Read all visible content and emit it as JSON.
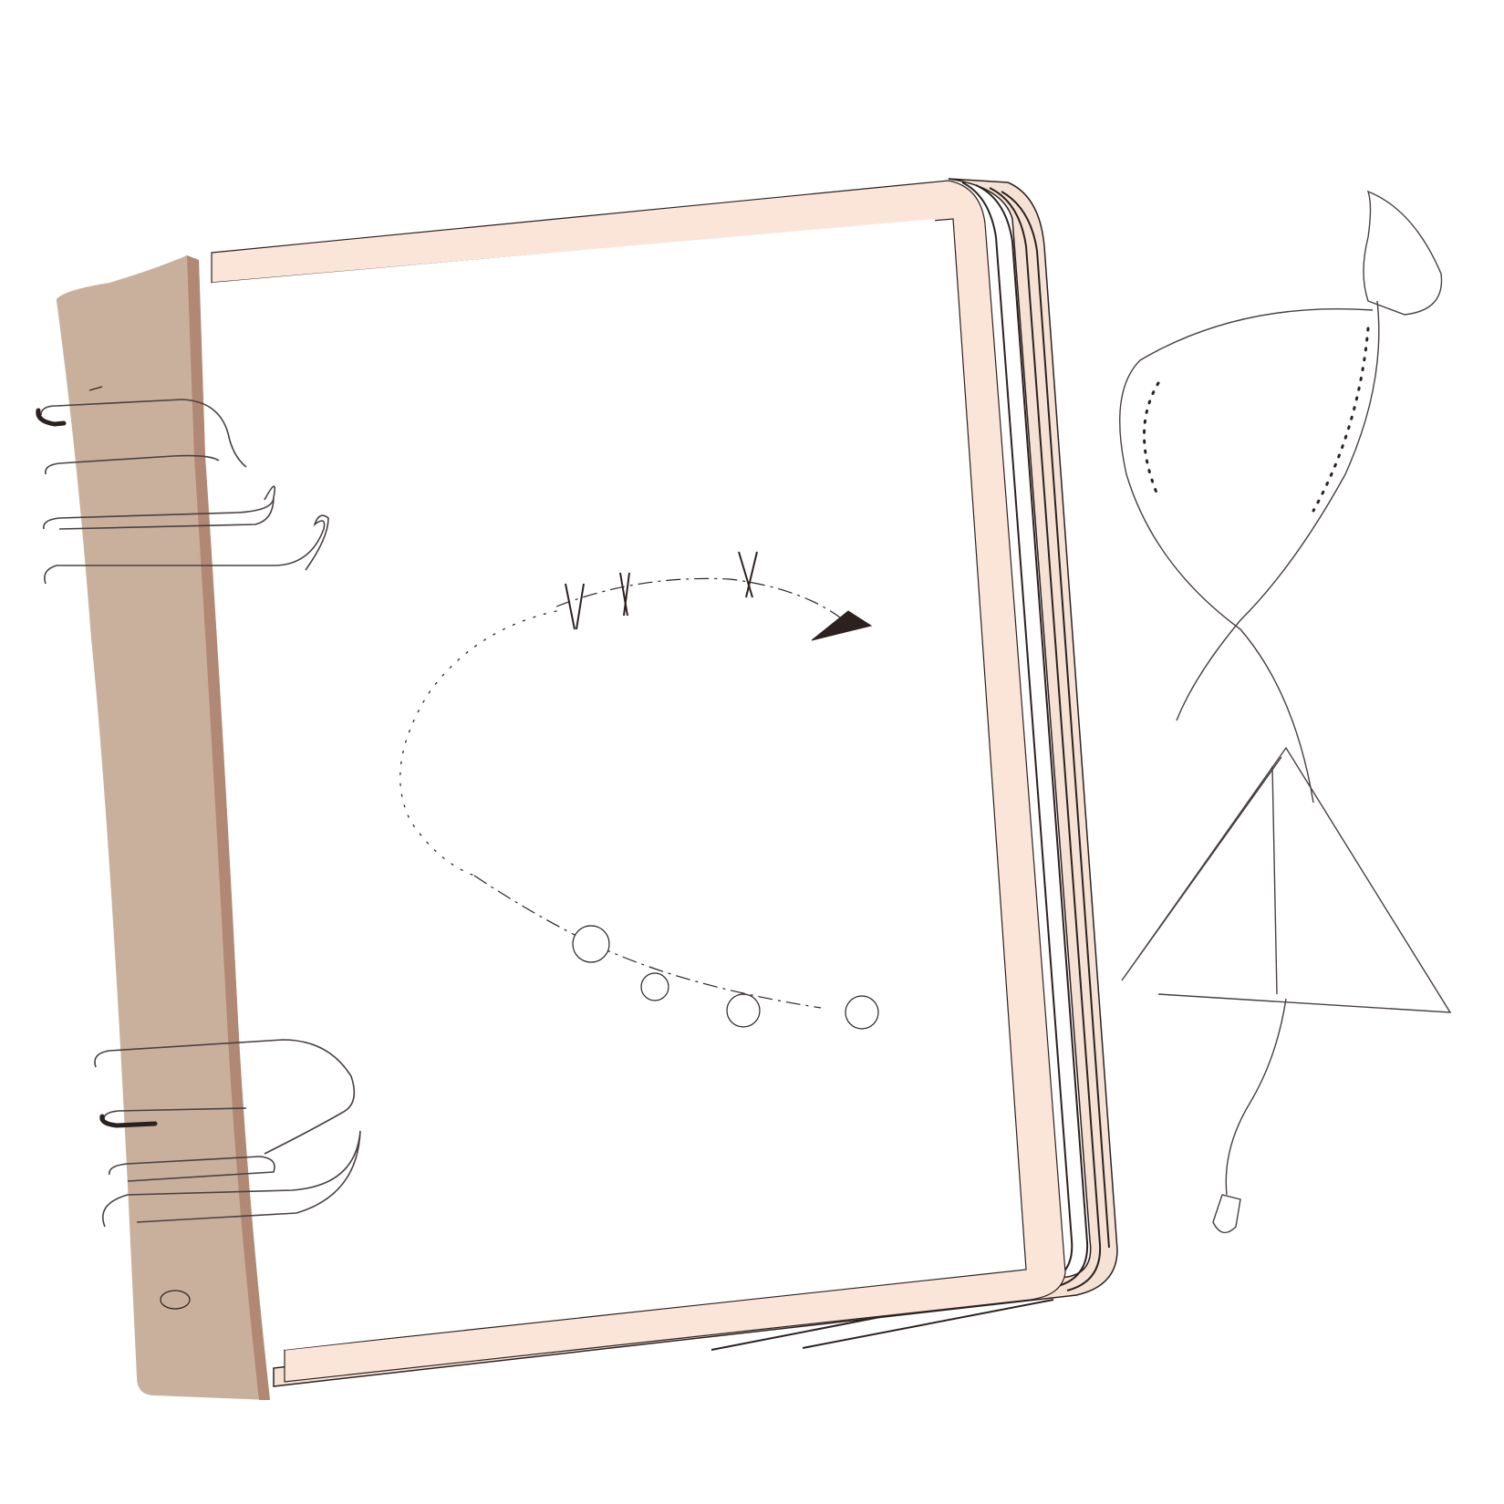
{
  "illustration": {
    "subject": "binder-notebook",
    "colors": {
      "background": "#ffffff",
      "spine": "#c9b09c",
      "spine_edge": "#b08873",
      "cover_border": "#fbe5d8",
      "page": "#ffffff",
      "page_edges": "#f6e2d4",
      "ink": "#2b2220",
      "ring_outline": "#4a4040"
    },
    "icons": [
      "binder-ring-icon",
      "dotted-arc-arrow-icon",
      "hourglass-figure-icon",
      "triangle-figure-icon"
    ]
  }
}
